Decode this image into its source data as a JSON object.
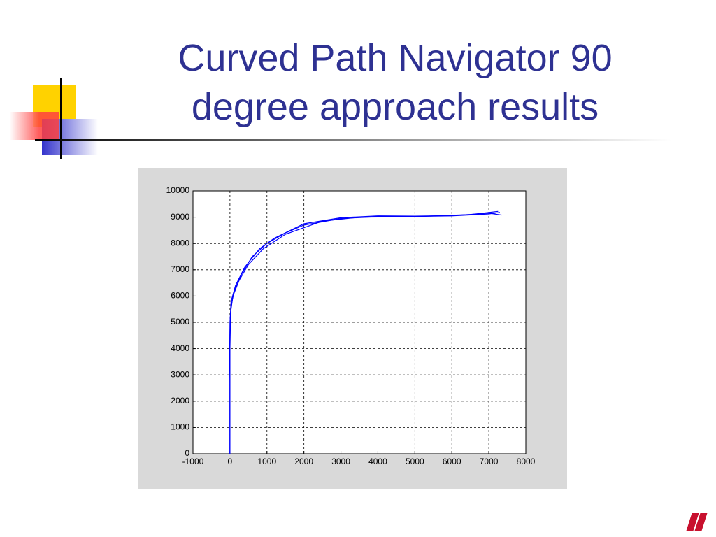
{
  "chart_data": {
    "type": "line",
    "title": "Curved Path Navigator 90 degree approach results",
    "xlim": [
      -1000,
      8000
    ],
    "xticks": [
      -1000,
      0,
      1000,
      2000,
      3000,
      4000,
      5000,
      6000,
      7000,
      8000
    ],
    "ylim": [
      0,
      10000
    ],
    "yticks": [
      0,
      1000,
      2000,
      3000,
      4000,
      5000,
      6000,
      7000,
      8000,
      9000,
      10000
    ],
    "grid": true,
    "series": [
      {
        "color": "#0000ff",
        "x": [
          0,
          0,
          0,
          10,
          40,
          120,
          300,
          600,
          1000,
          1500,
          2000,
          3000,
          4000,
          5000,
          6000,
          7000,
          7300
        ],
        "values": [
          0,
          2000,
          4500,
          5200,
          5700,
          6200,
          6800,
          7500,
          8000,
          8400,
          8700,
          8950,
          9020,
          9030,
          9050,
          9120,
          9180
        ]
      },
      {
        "color": "#0000ff",
        "x": [
          0,
          0,
          -10,
          0,
          30,
          150,
          400,
          800,
          1200,
          2000,
          3000,
          4000,
          5000,
          6000,
          7000,
          7350
        ],
        "values": [
          0,
          2800,
          3500,
          5000,
          5800,
          6400,
          7100,
          7800,
          8200,
          8750,
          8980,
          9050,
          9040,
          9060,
          9150,
          9080
        ]
      },
      {
        "color": "#0000ff",
        "x": [
          0,
          0,
          20,
          80,
          250,
          500,
          900,
          1500,
          2500,
          3500,
          5000,
          6500,
          7250
        ],
        "values": [
          0,
          4000,
          5400,
          6000,
          6600,
          7200,
          7800,
          8350,
          8850,
          9000,
          9020,
          9100,
          9220
        ]
      }
    ]
  }
}
